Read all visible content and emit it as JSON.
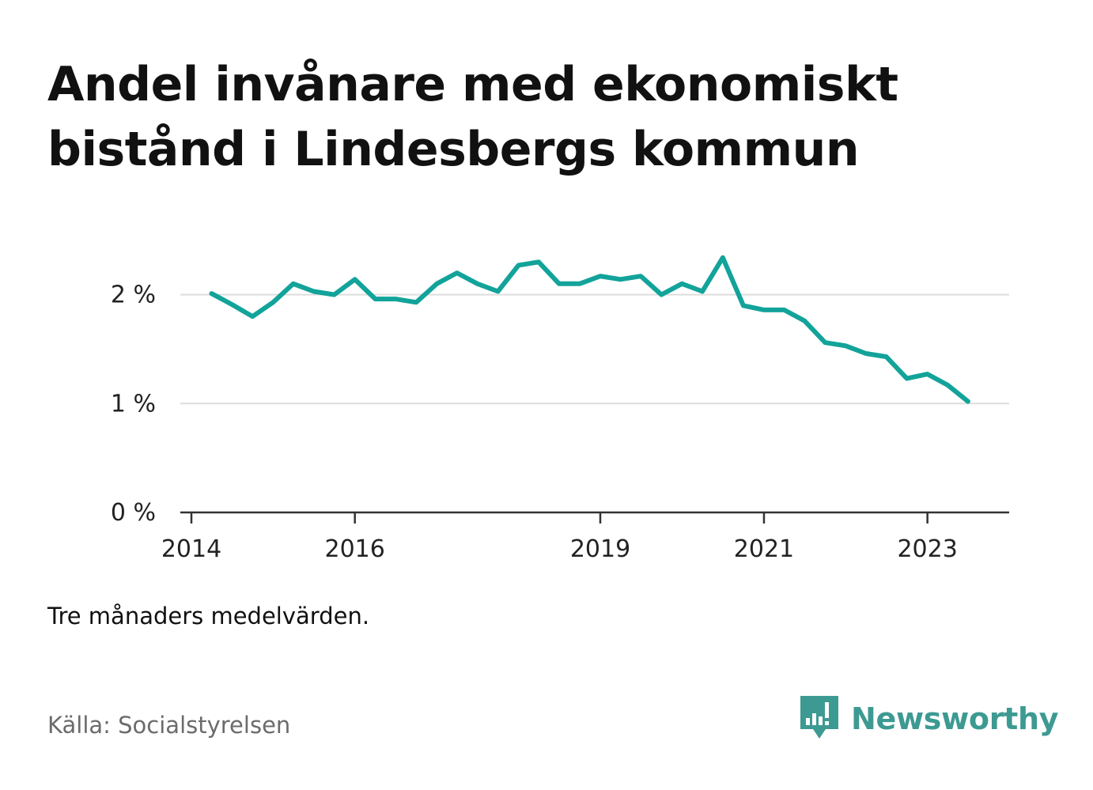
{
  "header": {
    "title": "Andel invånare med ekonomiskt bistånd i Lindesbergs kommun"
  },
  "footer": {
    "note": "Tre månaders medelvärden.",
    "source": "Källa: Socialstyrelsen",
    "brand": "Newsworthy"
  },
  "colors": {
    "line": "#12a39a",
    "grid": "#dddddd",
    "axis": "#333333",
    "brand": "#3d9a92"
  },
  "chart_data": {
    "type": "line",
    "title": "Andel invånare med ekonomiskt bistånd i Lindesbergs kommun",
    "xlabel": "",
    "ylabel": "",
    "unit": "%",
    "xlim": [
      "2014-01-01",
      "2024-01-01"
    ],
    "ylim": [
      0,
      2.6
    ],
    "yticks": [
      {
        "value": 0,
        "label": "0 %"
      },
      {
        "value": 1,
        "label": "1 %"
      },
      {
        "value": 2,
        "label": "2 %"
      }
    ],
    "xticks": [
      {
        "value": "2014-01-01",
        "label": "2014"
      },
      {
        "value": "2016-01-01",
        "label": "2016"
      },
      {
        "value": "2019-01-01",
        "label": "2019"
      },
      {
        "value": "2021-01-01",
        "label": "2021"
      },
      {
        "value": "2023-01-01",
        "label": "2023"
      }
    ],
    "grid": true,
    "legend": "none",
    "series": [
      {
        "points": [
          {
            "x": "2014-04-01",
            "y": 2.01
          },
          {
            "x": "2014-07-01",
            "y": 1.91
          },
          {
            "x": "2014-10-01",
            "y": 1.8
          },
          {
            "x": "2015-01-01",
            "y": 1.93
          },
          {
            "x": "2015-04-01",
            "y": 2.1
          },
          {
            "x": "2015-07-01",
            "y": 2.03
          },
          {
            "x": "2015-10-01",
            "y": 2.0
          },
          {
            "x": "2016-01-01",
            "y": 2.14
          },
          {
            "x": "2016-04-01",
            "y": 1.96
          },
          {
            "x": "2016-07-01",
            "y": 1.96
          },
          {
            "x": "2016-10-01",
            "y": 1.93
          },
          {
            "x": "2017-01-01",
            "y": 2.1
          },
          {
            "x": "2017-04-01",
            "y": 2.2
          },
          {
            "x": "2017-07-01",
            "y": 2.1
          },
          {
            "x": "2017-10-01",
            "y": 2.03
          },
          {
            "x": "2018-01-01",
            "y": 2.27
          },
          {
            "x": "2018-04-01",
            "y": 2.3
          },
          {
            "x": "2018-07-01",
            "y": 2.1
          },
          {
            "x": "2018-10-01",
            "y": 2.1
          },
          {
            "x": "2019-01-01",
            "y": 2.17
          },
          {
            "x": "2019-04-01",
            "y": 2.14
          },
          {
            "x": "2019-07-01",
            "y": 2.17
          },
          {
            "x": "2019-10-01",
            "y": 2.0
          },
          {
            "x": "2020-01-01",
            "y": 2.1
          },
          {
            "x": "2020-04-01",
            "y": 2.03
          },
          {
            "x": "2020-07-01",
            "y": 2.34
          },
          {
            "x": "2020-10-01",
            "y": 1.9
          },
          {
            "x": "2021-01-01",
            "y": 1.86
          },
          {
            "x": "2021-04-01",
            "y": 1.86
          },
          {
            "x": "2021-07-01",
            "y": 1.76
          },
          {
            "x": "2021-10-01",
            "y": 1.56
          },
          {
            "x": "2022-01-01",
            "y": 1.53
          },
          {
            "x": "2022-04-01",
            "y": 1.46
          },
          {
            "x": "2022-07-01",
            "y": 1.43
          },
          {
            "x": "2022-10-01",
            "y": 1.23
          },
          {
            "x": "2023-01-01",
            "y": 1.27
          },
          {
            "x": "2023-04-01",
            "y": 1.17
          },
          {
            "x": "2023-07-01",
            "y": 1.02
          }
        ]
      }
    ]
  }
}
